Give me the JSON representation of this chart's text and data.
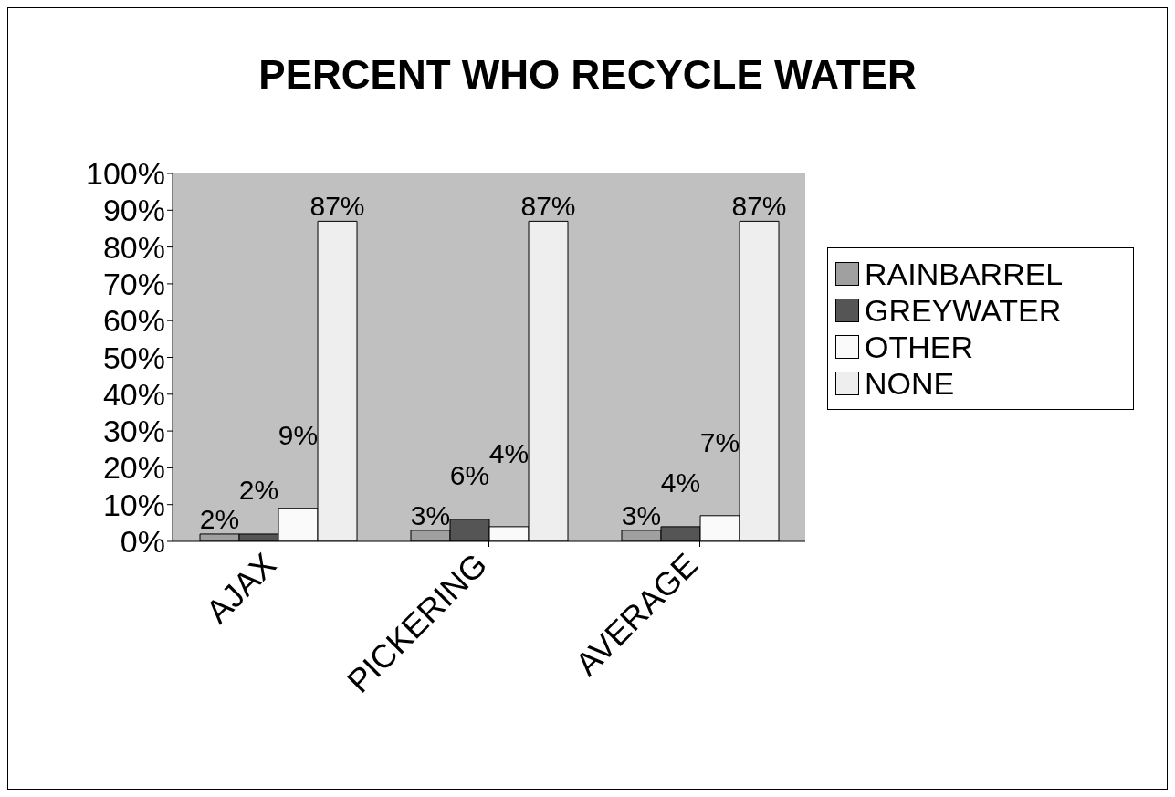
{
  "chart_data": {
    "type": "bar",
    "title": "PERCENT WHO RECYCLE WATER",
    "categories": [
      "AJAX",
      "PICKERING",
      "AVERAGE"
    ],
    "series": [
      {
        "name": "RAINBARREL",
        "color": "#a0a0a0",
        "values": [
          2,
          3,
          3
        ],
        "value_labels": [
          "2%",
          "3%",
          "3%"
        ]
      },
      {
        "name": "GREYWATER",
        "color": "#555555",
        "values": [
          2,
          6,
          4
        ],
        "value_labels": [
          "2%",
          "6%",
          "4%"
        ]
      },
      {
        "name": "OTHER",
        "color": "#fafafa",
        "values": [
          9,
          4,
          7
        ],
        "value_labels": [
          "9%",
          "4%",
          "7%"
        ]
      },
      {
        "name": "NONE",
        "color": "#eeeeee",
        "values": [
          87,
          87,
          87
        ],
        "value_labels": [
          "87%",
          "87%",
          "87%"
        ]
      }
    ],
    "ylim": [
      0,
      100
    ],
    "yticks": [
      {
        "value": 0,
        "label": "0%"
      },
      {
        "value": 10,
        "label": "10%"
      },
      {
        "value": 20,
        "label": "20%"
      },
      {
        "value": 30,
        "label": "30%"
      },
      {
        "value": 40,
        "label": "40%"
      },
      {
        "value": 50,
        "label": "50%"
      },
      {
        "value": 60,
        "label": "60%"
      },
      {
        "value": 70,
        "label": "70%"
      },
      {
        "value": 80,
        "label": "80%"
      },
      {
        "value": 90,
        "label": "90%"
      },
      {
        "value": 100,
        "label": "100%"
      }
    ],
    "legend": "right"
  }
}
